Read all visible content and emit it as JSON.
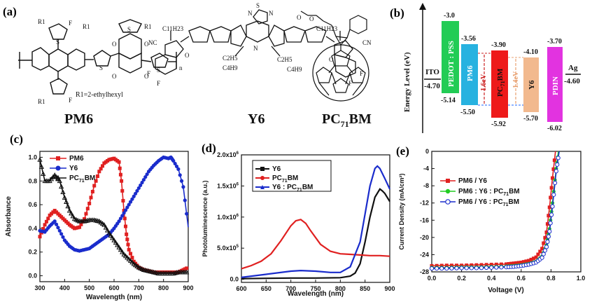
{
  "panel_labels": {
    "a": "(a)",
    "b": "(b)",
    "c": "(c)",
    "d": "(d)",
    "e": "(e)"
  },
  "molecules": {
    "pm6": {
      "name": "PM6",
      "r_note": "R1=2-ethylhexyl",
      "r1": "R1",
      "f": "F",
      "s": "S",
      "o": "O",
      "n": "n"
    },
    "y6": {
      "name": "Y6",
      "c11": "C11H23",
      "c2": "C2H5",
      "c4": "C4H9",
      "nc": "NC",
      "cn": "CN",
      "f": "F",
      "n": "N",
      "s": "S",
      "o": "O"
    },
    "pcbm": {
      "name": "PC71BM",
      "o": "O"
    }
  },
  "energy_diagram": {
    "ylabel": "Energy Level (eV)",
    "ito": {
      "label": "ITO",
      "value": "-4.70"
    },
    "ag": {
      "label": "Ag",
      "value": "-4.60"
    },
    "layers": [
      {
        "name": "PEDOT : PSS",
        "top": "-3.0",
        "bottom": "-5.14",
        "color": "#22cc55"
      },
      {
        "name": "PM6",
        "top": "-3.56",
        "bottom": "-5.50",
        "color": "#27b2e0"
      },
      {
        "name": "PC71BM",
        "top": "-3.90",
        "bottom": "-5.92",
        "color": "#ee1a1a"
      },
      {
        "name": "Y6",
        "top": "-4.10",
        "bottom": "-5.70",
        "color": "#f2b98e"
      },
      {
        "name": "PDIN",
        "top": "-3.70",
        "bottom": "-6.02",
        "color": "#e233e0"
      }
    ],
    "gaps": [
      {
        "label": "1.6eV",
        "color": "#cc2222"
      },
      {
        "label": "1.4eV",
        "color": "#e8a070"
      }
    ]
  },
  "chart_data": [
    {
      "type": "line",
      "panel": "c",
      "xlabel": "Wavelength (nm)",
      "ylabel": "Absorbance",
      "xlim": [
        300,
        900
      ],
      "ylim": [
        -0.05,
        1.05
      ],
      "xticks": [
        "300",
        "400",
        "500",
        "600",
        "700",
        "800",
        "900"
      ],
      "yticks": [
        "0.0",
        "0.2",
        "0.4",
        "0.6",
        "0.8",
        "1.0"
      ],
      "legend": "top-left",
      "series": [
        {
          "name": "PM6",
          "color": "#e02020",
          "marker": "square",
          "x": [
            300,
            320,
            340,
            360,
            380,
            400,
            420,
            440,
            460,
            480,
            500,
            520,
            540,
            560,
            580,
            600,
            620,
            630,
            640,
            650,
            660,
            680,
            700,
            720,
            740,
            760,
            780,
            800,
            820,
            840,
            860,
            880,
            900
          ],
          "values": [
            0.33,
            0.43,
            0.51,
            0.55,
            0.51,
            0.47,
            0.43,
            0.4,
            0.41,
            0.48,
            0.61,
            0.76,
            0.88,
            0.95,
            0.98,
            0.99,
            0.96,
            0.8,
            0.55,
            0.35,
            0.22,
            0.12,
            0.07,
            0.05,
            0.04,
            0.03,
            0.03,
            0.03,
            0.03,
            0.03,
            0.03,
            0.05,
            0.07
          ]
        },
        {
          "name": "Y6",
          "color": "#1a2ccc",
          "marker": "circle",
          "x": [
            300,
            320,
            340,
            360,
            380,
            400,
            420,
            440,
            460,
            480,
            500,
            520,
            540,
            560,
            580,
            600,
            620,
            640,
            660,
            680,
            700,
            720,
            740,
            760,
            780,
            800,
            820,
            830,
            840,
            860,
            880,
            900
          ],
          "values": [
            0.38,
            0.37,
            0.42,
            0.46,
            0.38,
            0.3,
            0.25,
            0.22,
            0.21,
            0.22,
            0.23,
            0.26,
            0.29,
            0.32,
            0.35,
            0.4,
            0.46,
            0.53,
            0.6,
            0.67,
            0.74,
            0.81,
            0.88,
            0.93,
            0.97,
            1.0,
            0.99,
            1.0,
            0.97,
            0.9,
            0.75,
            0.41
          ]
        },
        {
          "name": "PC71BM",
          "color": "#111111",
          "marker": "triangle",
          "x": [
            300,
            320,
            340,
            360,
            380,
            400,
            420,
            440,
            460,
            480,
            500,
            520,
            540,
            560,
            580,
            600,
            620,
            640,
            660,
            680,
            700,
            720,
            740,
            760,
            780,
            800,
            820,
            840,
            860,
            880,
            900
          ],
          "values": [
            0.98,
            0.8,
            0.8,
            0.85,
            0.8,
            0.66,
            0.55,
            0.48,
            0.46,
            0.46,
            0.47,
            0.47,
            0.46,
            0.43,
            0.36,
            0.3,
            0.24,
            0.18,
            0.14,
            0.1,
            0.07,
            0.05,
            0.04,
            0.03,
            0.02,
            0.02,
            0.02,
            0.02,
            0.03,
            0.03,
            0.03
          ]
        }
      ]
    },
    {
      "type": "line",
      "panel": "d",
      "xlabel": "Wavelength (nm)",
      "ylabel": "Photoluminescence (a.u.)",
      "xlim": [
        600,
        900
      ],
      "ylim": [
        -50000,
        2000000
      ],
      "xticks": [
        "600",
        "650",
        "700",
        "750",
        "800",
        "850",
        "900"
      ],
      "yticks": [
        {
          "mant": "0.0",
          "exp": ""
        },
        {
          "mant": "5.0x10",
          "exp": "5"
        },
        {
          "mant": "1.0x10",
          "exp": "6"
        },
        {
          "mant": "1.5x10",
          "exp": "6"
        },
        {
          "mant": "2.0x10",
          "exp": "6"
        }
      ],
      "legend": "top-left",
      "series": [
        {
          "name": "Y6",
          "color": "#111111",
          "x": [
            600,
            650,
            700,
            750,
            800,
            820,
            830,
            840,
            850,
            860,
            870,
            880,
            885,
            890,
            900
          ],
          "values": [
            10000,
            15000,
            20000,
            20000,
            25000,
            50000,
            100000,
            250000,
            600000,
            1000000,
            1320000,
            1450000,
            1420000,
            1380000,
            1250000
          ]
        },
        {
          "name": "PC71BM",
          "color": "#e02020",
          "x": [
            600,
            620,
            640,
            660,
            680,
            700,
            710,
            720,
            730,
            740,
            760,
            780,
            800,
            820,
            840,
            860,
            880,
            900
          ],
          "values": [
            170000,
            220000,
            290000,
            410000,
            620000,
            860000,
            940000,
            960000,
            900000,
            780000,
            560000,
            450000,
            410000,
            400000,
            390000,
            380000,
            380000,
            370000
          ]
        },
        {
          "name": "Y6 : PC71BM",
          "color": "#1a2ccc",
          "x": [
            600,
            650,
            700,
            720,
            750,
            780,
            800,
            820,
            840,
            850,
            860,
            870,
            875,
            880,
            890,
            900
          ],
          "values": [
            30000,
            80000,
            130000,
            140000,
            130000,
            110000,
            110000,
            200000,
            600000,
            1050000,
            1500000,
            1780000,
            1820000,
            1780000,
            1620000,
            1450000
          ]
        }
      ]
    },
    {
      "type": "line",
      "panel": "e",
      "xlabel": "Voltage (V)",
      "ylabel": "Current Density (mA/cm²)",
      "xlim": [
        0.0,
        1.0
      ],
      "ylim": [
        -28,
        0
      ],
      "xticks": [
        "0.0",
        "0.2",
        "0.4",
        "0.6",
        "0.8",
        "1.0"
      ],
      "yticks": [
        "-28",
        "-24",
        "-20",
        "-16",
        "-12",
        "-8",
        "-4",
        "0"
      ],
      "legend": "center",
      "series": [
        {
          "name": "PM6 / Y6",
          "color": "#e02020",
          "marker": "square",
          "x": [
            0.0,
            0.1,
            0.2,
            0.3,
            0.4,
            0.5,
            0.55,
            0.6,
            0.65,
            0.7,
            0.74,
            0.77,
            0.79,
            0.81,
            0.83
          ],
          "values": [
            -26.6,
            -26.5,
            -26.5,
            -26.4,
            -26.3,
            -26.2,
            -26.0,
            -25.8,
            -25.4,
            -24.6,
            -22.6,
            -18.8,
            -13.0,
            -6.2,
            0
          ]
        },
        {
          "name": "PM6 : Y6 : PC71BM",
          "color": "#22cc22",
          "marker": "circle",
          "x": [
            0.0,
            0.1,
            0.2,
            0.3,
            0.4,
            0.5,
            0.55,
            0.6,
            0.65,
            0.7,
            0.74,
            0.77,
            0.79,
            0.81,
            0.835,
            0.85
          ],
          "values": [
            -27.0,
            -27.0,
            -26.9,
            -26.9,
            -26.8,
            -26.7,
            -26.6,
            -26.4,
            -26.1,
            -25.6,
            -24.4,
            -21.8,
            -18.0,
            -12.0,
            -4.0,
            0
          ]
        },
        {
          "name": "PM6 / Y6 : PC71BM",
          "color": "#1a2ccc",
          "marker": "circle",
          "x": [
            0.0,
            0.1,
            0.2,
            0.3,
            0.4,
            0.5,
            0.55,
            0.6,
            0.65,
            0.7,
            0.74,
            0.77,
            0.79,
            0.81,
            0.835,
            0.855
          ],
          "values": [
            -27.2,
            -27.2,
            -27.1,
            -27.1,
            -27.0,
            -26.9,
            -26.8,
            -26.6,
            -26.3,
            -25.8,
            -24.7,
            -22.2,
            -18.6,
            -12.8,
            -4.6,
            0
          ]
        }
      ]
    }
  ]
}
